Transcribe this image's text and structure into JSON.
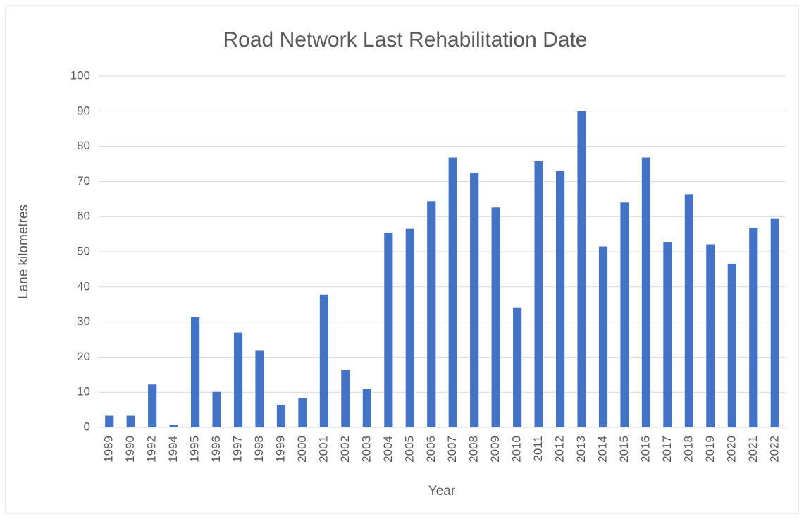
{
  "chart_data": {
    "type": "bar",
    "title": "Road Network Last Rehabilitation Date",
    "x_label": "Year",
    "y_label": "Lane kilometres",
    "categories": [
      "1989",
      "1990",
      "1992",
      "1994",
      "1995",
      "1996",
      "1997",
      "1998",
      "1999",
      "2000",
      "2001",
      "2002",
      "2003",
      "2004",
      "2005",
      "2006",
      "2007",
      "2008",
      "2009",
      "2010",
      "2011",
      "2012",
      "2013",
      "2014",
      "2015",
      "2016",
      "2017",
      "2018",
      "2019",
      "2020",
      "2021",
      "2022"
    ],
    "values": [
      3.3,
      3.3,
      12.2,
      0.8,
      31.4,
      10.1,
      27.0,
      21.8,
      6.4,
      8.3,
      37.8,
      16.3,
      11.0,
      55.4,
      56.5,
      64.4,
      76.8,
      72.5,
      62.6,
      34.0,
      75.7,
      72.9,
      90.0,
      51.5,
      64.0,
      76.8,
      52.8,
      66.4,
      52.1,
      46.6,
      56.8,
      59.5
    ],
    "color": "#4472c4",
    "ylim": [
      0,
      100
    ],
    "yticks": [
      0,
      10,
      20,
      30,
      40,
      50,
      60,
      70,
      80,
      90,
      100
    ],
    "grid": true
  }
}
